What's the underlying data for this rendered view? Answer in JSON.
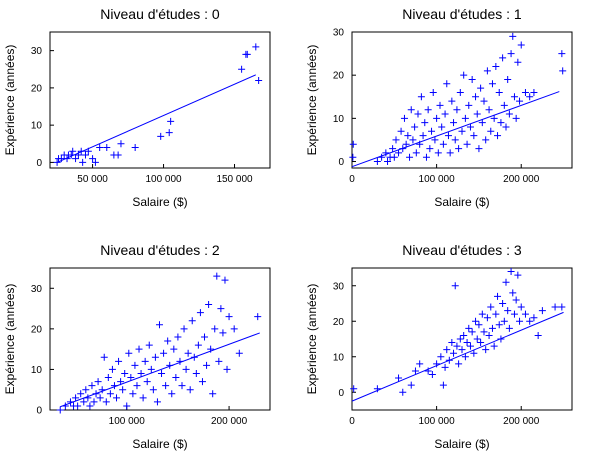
{
  "chart_data": [
    {
      "type": "scatter",
      "title": "Niveau d'études : 0",
      "xlabel": "Salaire ($)",
      "ylabel": "Expérience (années)",
      "xlim": [
        20000,
        175000
      ],
      "ylim": [
        -1.5,
        35
      ],
      "xticks": [
        50000,
        100000,
        150000
      ],
      "xtick_labels": [
        "50 000",
        "100 000",
        "150 000"
      ],
      "yticks": [
        0,
        10,
        20,
        30
      ],
      "ytick_labels": [
        "0",
        "10",
        "20",
        "30"
      ],
      "grid": false,
      "fit_line": {
        "x": [
          25000,
          165000
        ],
        "y": [
          0,
          23.5
        ]
      },
      "points": [
        [
          25000,
          0
        ],
        [
          26000,
          1
        ],
        [
          28000,
          1
        ],
        [
          30000,
          2
        ],
        [
          32000,
          1
        ],
        [
          33000,
          2
        ],
        [
          35000,
          2
        ],
        [
          36000,
          3
        ],
        [
          38000,
          1
        ],
        [
          40000,
          2
        ],
        [
          42000,
          3
        ],
        [
          43000,
          0
        ],
        [
          45000,
          2
        ],
        [
          47000,
          3
        ],
        [
          50000,
          1
        ],
        [
          52000,
          0
        ],
        [
          55000,
          4
        ],
        [
          60000,
          4
        ],
        [
          65000,
          2
        ],
        [
          68000,
          2
        ],
        [
          70000,
          5
        ],
        [
          80000,
          4
        ],
        [
          98000,
          7
        ],
        [
          104000,
          8
        ],
        [
          105000,
          11
        ],
        [
          155000,
          25
        ],
        [
          158000,
          29
        ],
        [
          159000,
          29
        ],
        [
          165000,
          31
        ],
        [
          167000,
          22
        ]
      ]
    },
    {
      "type": "scatter",
      "title": "Niveau d'études : 1",
      "xlabel": "Salaire ($)",
      "ylabel": "Expérience (années)",
      "xlim": [
        0,
        260000
      ],
      "ylim": [
        -1.5,
        30
      ],
      "xticks": [
        0,
        100000,
        200000
      ],
      "xtick_labels": [
        "0",
        "100 000",
        "200 000"
      ],
      "yticks": [
        0,
        10,
        20,
        30
      ],
      "ytick_labels": [
        "0",
        "10",
        "20",
        "30"
      ],
      "grid": false,
      "fit_line": {
        "x": [
          0,
          245000
        ],
        "y": [
          -1.2,
          16.2
        ]
      },
      "points": [
        [
          1000,
          1
        ],
        [
          1500,
          4
        ],
        [
          30000,
          0
        ],
        [
          35000,
          1
        ],
        [
          40000,
          2
        ],
        [
          42000,
          0
        ],
        [
          45000,
          1
        ],
        [
          48000,
          3
        ],
        [
          50000,
          1
        ],
        [
          52000,
          5
        ],
        [
          55000,
          2
        ],
        [
          58000,
          7
        ],
        [
          60000,
          3
        ],
        [
          62000,
          10
        ],
        [
          64000,
          4
        ],
        [
          66000,
          6
        ],
        [
          68000,
          1
        ],
        [
          70000,
          12
        ],
        [
          72000,
          5
        ],
        [
          74000,
          8
        ],
        [
          76000,
          2
        ],
        [
          78000,
          11
        ],
        [
          80000,
          4
        ],
        [
          82000,
          15
        ],
        [
          84000,
          6
        ],
        [
          86000,
          9
        ],
        [
          88000,
          1
        ],
        [
          90000,
          12
        ],
        [
          92000,
          3
        ],
        [
          94000,
          7
        ],
        [
          96000,
          16
        ],
        [
          98000,
          5
        ],
        [
          100000,
          10
        ],
        [
          102000,
          2
        ],
        [
          104000,
          13
        ],
        [
          106000,
          8
        ],
        [
          108000,
          4
        ],
        [
          110000,
          11
        ],
        [
          112000,
          18
        ],
        [
          114000,
          6
        ],
        [
          116000,
          2
        ],
        [
          118000,
          14
        ],
        [
          120000,
          9
        ],
        [
          122000,
          5
        ],
        [
          124000,
          12
        ],
        [
          126000,
          3
        ],
        [
          128000,
          16
        ],
        [
          130000,
          7
        ],
        [
          132000,
          20
        ],
        [
          134000,
          10
        ],
        [
          136000,
          4
        ],
        [
          138000,
          13
        ],
        [
          140000,
          8
        ],
        [
          142000,
          19
        ],
        [
          144000,
          6
        ],
        [
          146000,
          15
        ],
        [
          148000,
          11
        ],
        [
          150000,
          3
        ],
        [
          152000,
          17
        ],
        [
          154000,
          9
        ],
        [
          156000,
          14
        ],
        [
          158000,
          5
        ],
        [
          160000,
          21
        ],
        [
          162000,
          12
        ],
        [
          164000,
          7
        ],
        [
          166000,
          18
        ],
        [
          168000,
          10
        ],
        [
          170000,
          22
        ],
        [
          172000,
          6
        ],
        [
          174000,
          16
        ],
        [
          176000,
          9
        ],
        [
          178000,
          24
        ],
        [
          180000,
          13
        ],
        [
          182000,
          8
        ],
        [
          184000,
          19
        ],
        [
          186000,
          11
        ],
        [
          188000,
          25
        ],
        [
          190000,
          29
        ],
        [
          192000,
          15
        ],
        [
          194000,
          10
        ],
        [
          196000,
          23
        ],
        [
          198000,
          14
        ],
        [
          200000,
          27
        ],
        [
          205000,
          16
        ],
        [
          210000,
          15
        ],
        [
          215000,
          16
        ],
        [
          248000,
          25
        ],
        [
          249000,
          21
        ]
      ]
    },
    {
      "type": "scatter",
      "title": "Niveau d'études : 2",
      "xlabel": "Salaire ($)",
      "ylabel": "Expérience (années)",
      "xlim": [
        25000,
        240000
      ],
      "ylim": [
        0,
        35
      ],
      "xticks": [
        100000,
        200000
      ],
      "xtick_labels": [
        "100 000",
        "200 000"
      ],
      "yticks": [
        0,
        10,
        20,
        30
      ],
      "ytick_labels": [
        "0",
        "10",
        "20",
        "30"
      ],
      "grid": false,
      "fit_line": {
        "x": [
          35000,
          230000
        ],
        "y": [
          0.8,
          19
        ]
      },
      "points": [
        [
          35000,
          0
        ],
        [
          40000,
          1
        ],
        [
          45000,
          2
        ],
        [
          48000,
          1
        ],
        [
          50000,
          3
        ],
        [
          52000,
          1
        ],
        [
          55000,
          4
        ],
        [
          58000,
          2
        ],
        [
          60000,
          5
        ],
        [
          62000,
          3
        ],
        [
          64000,
          1
        ],
        [
          66000,
          6
        ],
        [
          68000,
          2
        ],
        [
          70000,
          4
        ],
        [
          72000,
          7
        ],
        [
          74000,
          3
        ],
        [
          76000,
          5
        ],
        [
          78000,
          13
        ],
        [
          80000,
          2
        ],
        [
          82000,
          8
        ],
        [
          84000,
          4
        ],
        [
          86000,
          10
        ],
        [
          88000,
          6
        ],
        [
          90000,
          3
        ],
        [
          92000,
          12
        ],
        [
          94000,
          7
        ],
        [
          96000,
          5
        ],
        [
          98000,
          9
        ],
        [
          100000,
          1
        ],
        [
          102000,
          14
        ],
        [
          104000,
          8
        ],
        [
          106000,
          4
        ],
        [
          108000,
          11
        ],
        [
          110000,
          6
        ],
        [
          112000,
          15
        ],
        [
          114000,
          9
        ],
        [
          116000,
          3
        ],
        [
          118000,
          12
        ],
        [
          120000,
          7
        ],
        [
          122000,
          16
        ],
        [
          124000,
          10
        ],
        [
          126000,
          5
        ],
        [
          128000,
          13
        ],
        [
          130000,
          2
        ],
        [
          132000,
          21
        ],
        [
          134000,
          9
        ],
        [
          136000,
          14
        ],
        [
          138000,
          6
        ],
        [
          140000,
          17
        ],
        [
          142000,
          11
        ],
        [
          144000,
          4
        ],
        [
          146000,
          15
        ],
        [
          148000,
          8
        ],
        [
          150000,
          18
        ],
        [
          152000,
          12
        ],
        [
          154000,
          6
        ],
        [
          156000,
          20
        ],
        [
          158000,
          10
        ],
        [
          160000,
          14
        ],
        [
          162000,
          5
        ],
        [
          164000,
          22
        ],
        [
          166000,
          13
        ],
        [
          168000,
          9
        ],
        [
          170000,
          16
        ],
        [
          172000,
          24
        ],
        [
          174000,
          7
        ],
        [
          176000,
          18
        ],
        [
          178000,
          11
        ],
        [
          180000,
          26
        ],
        [
          182000,
          15
        ],
        [
          184000,
          4
        ],
        [
          186000,
          20
        ],
        [
          188000,
          33
        ],
        [
          190000,
          12
        ],
        [
          192000,
          25
        ],
        [
          194000,
          19
        ],
        [
          196000,
          32
        ],
        [
          198000,
          10
        ],
        [
          200000,
          23
        ],
        [
          205000,
          20
        ],
        [
          210000,
          14
        ],
        [
          228000,
          23
        ]
      ]
    },
    {
      "type": "scatter",
      "title": "Niveau d'études : 3",
      "xlabel": "Salaire ($)",
      "ylabel": "Expérience (années)",
      "xlim": [
        0,
        260000
      ],
      "ylim": [
        -5,
        35
      ],
      "xticks": [
        0,
        100000,
        200000
      ],
      "xtick_labels": [
        "0",
        "100 000",
        "200 000"
      ],
      "yticks": [
        0,
        10,
        20,
        30
      ],
      "ytick_labels": [
        "0",
        "10",
        "20",
        "30"
      ],
      "grid": false,
      "fit_line": {
        "x": [
          0,
          250000
        ],
        "y": [
          -2.5,
          22.5
        ]
      },
      "points": [
        [
          2000,
          1
        ],
        [
          30000,
          1
        ],
        [
          55000,
          4
        ],
        [
          60000,
          0
        ],
        [
          70000,
          2
        ],
        [
          75000,
          6
        ],
        [
          80000,
          8
        ],
        [
          90000,
          6
        ],
        [
          95000,
          5
        ],
        [
          100000,
          8
        ],
        [
          105000,
          10
        ],
        [
          108000,
          2
        ],
        [
          110000,
          7
        ],
        [
          112000,
          12
        ],
        [
          115000,
          9
        ],
        [
          118000,
          14
        ],
        [
          120000,
          11
        ],
        [
          122000,
          30
        ],
        [
          124000,
          13
        ],
        [
          126000,
          8
        ],
        [
          128000,
          15
        ],
        [
          130000,
          12
        ],
        [
          132000,
          16
        ],
        [
          134000,
          10
        ],
        [
          136000,
          14
        ],
        [
          138000,
          18
        ],
        [
          140000,
          13
        ],
        [
          142000,
          17
        ],
        [
          144000,
          11
        ],
        [
          146000,
          20
        ],
        [
          148000,
          15
        ],
        [
          150000,
          19
        ],
        [
          152000,
          14
        ],
        [
          154000,
          22
        ],
        [
          156000,
          17
        ],
        [
          158000,
          12
        ],
        [
          160000,
          21
        ],
        [
          162000,
          16
        ],
        [
          164000,
          24
        ],
        [
          166000,
          18
        ],
        [
          168000,
          13
        ],
        [
          170000,
          22
        ],
        [
          172000,
          27
        ],
        [
          174000,
          19
        ],
        [
          176000,
          15
        ],
        [
          178000,
          25
        ],
        [
          180000,
          20
        ],
        [
          182000,
          31
        ],
        [
          184000,
          23
        ],
        [
          186000,
          18
        ],
        [
          188000,
          34
        ],
        [
          190000,
          28
        ],
        [
          192000,
          22
        ],
        [
          194000,
          26
        ],
        [
          196000,
          33
        ],
        [
          198000,
          20
        ],
        [
          200000,
          24
        ],
        [
          205000,
          22
        ],
        [
          210000,
          20
        ],
        [
          215000,
          21
        ],
        [
          220000,
          16
        ],
        [
          225000,
          23
        ],
        [
          240000,
          24
        ],
        [
          248000,
          24
        ]
      ]
    }
  ]
}
